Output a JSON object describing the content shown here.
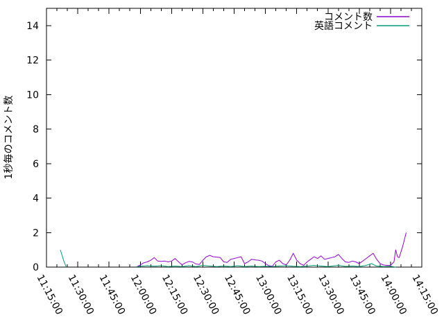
{
  "figure": {
    "background": "#ffffff",
    "ylabel": "1秒毎のコメント数",
    "text_color": "#000000",
    "border_color": "#000000"
  },
  "legend": {
    "position": "top-right-inside",
    "entries": [
      {
        "label": "コメント数",
        "color": "#9400d3"
      },
      {
        "label": "英語コメント",
        "color": "#009e73"
      }
    ]
  },
  "chart_data": {
    "type": "line",
    "title": "",
    "ylabel": "1秒毎のコメント数",
    "grid": false,
    "legend_position": "top-right-inside",
    "x_range": [
      "11:15:00",
      "14:15:00"
    ],
    "ylim": [
      0,
      15
    ],
    "yticks": [
      0,
      2,
      4,
      6,
      8,
      10,
      12,
      14
    ],
    "xticks": [
      "11:15:00",
      "11:30:00",
      "11:45:00",
      "12:00:00",
      "12:15:00",
      "12:30:00",
      "12:45:00",
      "13:00:00",
      "13:15:00",
      "13:30:00",
      "13:45:00",
      "14:00:00",
      "14:15:00"
    ],
    "x_minor_interval_seconds": 300,
    "series": [
      {
        "id": "comment-count",
        "name": "コメント数",
        "color": "#9400d3",
        "segments": [
          [
            [
              "11:58:20",
              0.02
            ],
            [
              "11:59:40",
              0.1
            ],
            [
              "12:01:40",
              0.25
            ],
            [
              "12:03:20",
              0.3
            ],
            [
              "12:05:00",
              0.4
            ],
            [
              "12:06:40",
              0.55
            ],
            [
              "12:08:20",
              0.35
            ],
            [
              "12:10:00",
              0.33
            ],
            [
              "12:11:40",
              0.35
            ],
            [
              "12:13:20",
              0.3
            ],
            [
              "12:15:00",
              0.35
            ],
            [
              "12:16:40",
              0.5
            ],
            [
              "12:18:20",
              0.3
            ],
            [
              "12:20:00",
              0.13
            ],
            [
              "12:21:40",
              0.25
            ],
            [
              "12:23:20",
              0.33
            ],
            [
              "12:25:00",
              0.3
            ],
            [
              "12:26:40",
              0.18
            ],
            [
              "12:28:20",
              0.15
            ],
            [
              "12:30:00",
              0.4
            ],
            [
              "12:31:40",
              0.6
            ],
            [
              "12:33:20",
              0.68
            ],
            [
              "12:35:00",
              0.6
            ],
            [
              "12:36:40",
              0.58
            ],
            [
              "12:38:20",
              0.55
            ],
            [
              "12:40:00",
              0.3
            ],
            [
              "12:41:40",
              0.27
            ],
            [
              "12:43:20",
              0.45
            ],
            [
              "12:45:00",
              0.5
            ],
            [
              "12:46:40",
              0.55
            ],
            [
              "12:48:20",
              0.6
            ],
            [
              "12:50:00",
              0.2
            ],
            [
              "12:51:40",
              0.3
            ],
            [
              "12:53:20",
              0.45
            ],
            [
              "12:55:00",
              0.42
            ],
            [
              "12:56:40",
              0.4
            ],
            [
              "12:58:20",
              0.35
            ],
            [
              "13:00:00",
              0.2
            ],
            [
              "13:01:40",
              0.08
            ],
            [
              "13:03:20",
              0.05
            ],
            [
              "13:05:00",
              0.3
            ],
            [
              "13:06:40",
              0.4
            ],
            [
              "13:08:20",
              0.2
            ],
            [
              "13:10:00",
              0.13
            ],
            [
              "13:11:40",
              0.4
            ],
            [
              "13:13:20",
              0.8
            ],
            [
              "13:15:00",
              0.4
            ],
            [
              "13:16:40",
              0.2
            ],
            [
              "13:18:20",
              0.1
            ],
            [
              "13:20:00",
              0.3
            ],
            [
              "13:21:40",
              0.45
            ],
            [
              "13:23:20",
              0.6
            ],
            [
              "13:25:00",
              0.5
            ],
            [
              "13:26:40",
              0.65
            ],
            [
              "13:28:20",
              0.45
            ],
            [
              "13:30:00",
              0.5
            ],
            [
              "13:31:40",
              0.55
            ],
            [
              "13:33:20",
              0.6
            ],
            [
              "13:35:00",
              0.73
            ],
            [
              "13:36:40",
              0.5
            ],
            [
              "13:38:20",
              0.3
            ],
            [
              "13:40:00",
              0.27
            ],
            [
              "13:41:40",
              0.35
            ],
            [
              "13:43:20",
              0.3
            ],
            [
              "13:45:00",
              0.2
            ],
            [
              "13:46:40",
              0.35
            ],
            [
              "13:48:20",
              0.5
            ],
            [
              "13:50:00",
              0.65
            ],
            [
              "13:51:40",
              0.8
            ],
            [
              "13:53:20",
              0.45
            ],
            [
              "13:55:00",
              0.2
            ],
            [
              "13:56:40",
              0.12
            ],
            [
              "13:58:20",
              0.1
            ],
            [
              "14:00:00",
              0.1
            ],
            [
              "14:01:40",
              0.3
            ],
            [
              "14:02:30",
              1.0
            ],
            [
              "14:03:20",
              0.6
            ],
            [
              "14:04:10",
              0.55
            ],
            [
              "14:05:50",
              1.2
            ],
            [
              "14:07:30",
              2.0
            ]
          ]
        ]
      },
      {
        "id": "english-comments",
        "name": "英語コメント",
        "color": "#009e73",
        "segments": [
          [
            [
              "11:21:40",
              1.0
            ],
            [
              "11:23:20",
              0.35
            ],
            [
              "11:24:30",
              0.0
            ]
          ],
          [
            [
              "11:58:20",
              0.02
            ],
            [
              "12:00:00",
              0.05
            ],
            [
              "12:03:20",
              0.08
            ],
            [
              "12:06:40",
              0.05
            ],
            [
              "12:10:00",
              0.08
            ],
            [
              "12:13:20",
              0.03
            ],
            [
              "12:16:40",
              0.06
            ],
            [
              "12:20:00",
              0.03
            ],
            [
              "12:23:20",
              0.08
            ],
            [
              "12:26:40",
              0.03
            ],
            [
              "12:30:00",
              0.1
            ],
            [
              "12:33:20",
              0.06
            ],
            [
              "12:36:40",
              0.03
            ],
            [
              "12:40:00",
              0.06
            ],
            [
              "12:43:20",
              0.03
            ],
            [
              "12:46:40",
              0.08
            ],
            [
              "12:50:00",
              0.03
            ],
            [
              "12:53:20",
              0.06
            ],
            [
              "12:56:40",
              0.03
            ],
            [
              "13:00:00",
              0.05
            ],
            [
              "13:03:20",
              0.03
            ],
            [
              "13:06:40",
              0.06
            ],
            [
              "13:10:00",
              0.08
            ],
            [
              "13:13:20",
              0.05
            ],
            [
              "13:16:40",
              0.03
            ],
            [
              "13:20:00",
              0.06
            ],
            [
              "13:23:20",
              0.1
            ],
            [
              "13:26:40",
              0.06
            ],
            [
              "13:30:00",
              0.03
            ],
            [
              "13:33:20",
              0.08
            ],
            [
              "13:35:00",
              0.1
            ],
            [
              "13:38:20",
              0.04
            ],
            [
              "13:41:40",
              0.06
            ],
            [
              "13:45:00",
              0.03
            ],
            [
              "13:48:20",
              0.1
            ],
            [
              "13:50:50",
              0.2
            ],
            [
              "13:53:20",
              0.06
            ],
            [
              "13:56:40",
              0.03
            ],
            [
              "14:00:00",
              0.05
            ],
            [
              "14:02:30",
              0.0
            ]
          ]
        ]
      }
    ]
  }
}
